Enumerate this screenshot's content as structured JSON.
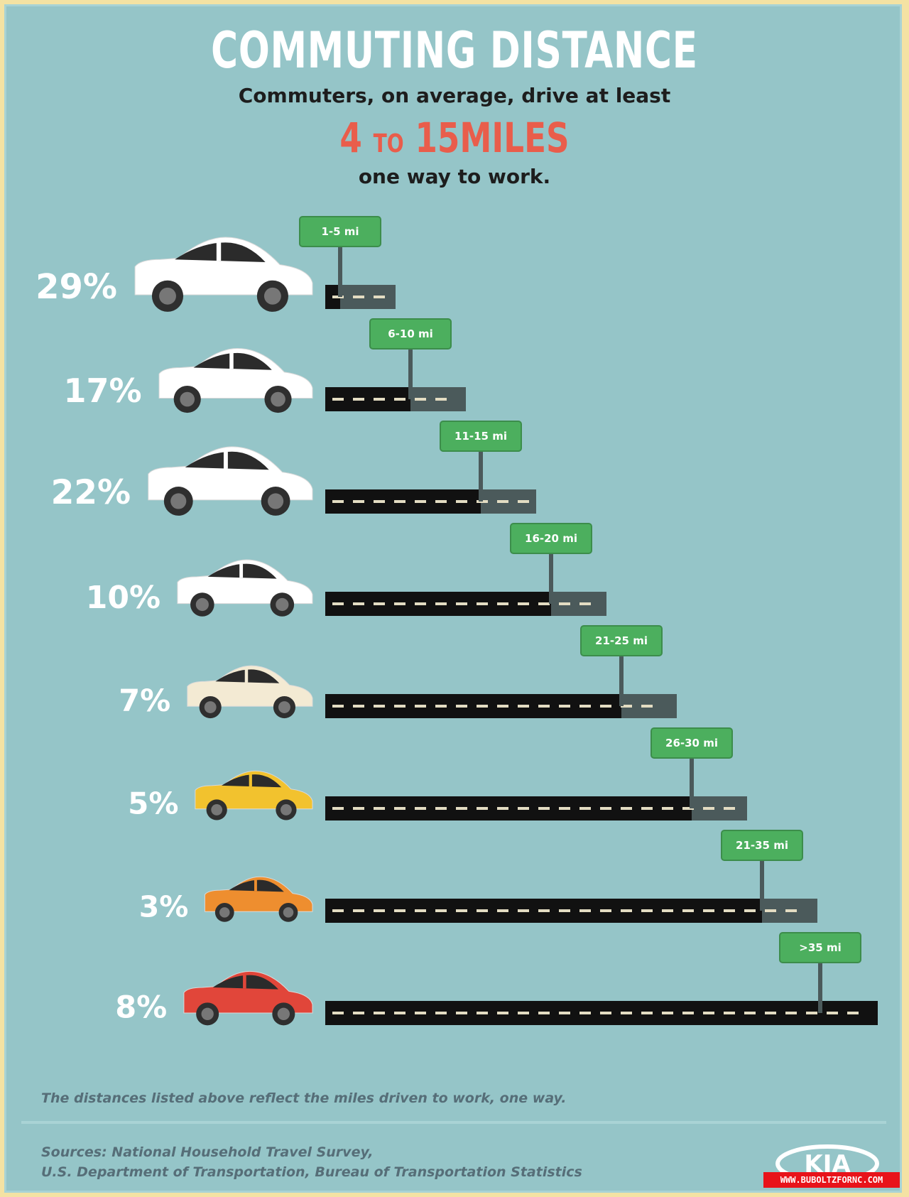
{
  "header": {
    "title": "COMMUTING DISTANCE",
    "subtitle_line1": "Commuters, on average, drive at least",
    "highlight_from": "4",
    "highlight_to_word": "TO",
    "highlight_to": "15MILES",
    "subtitle_line2": "one way to work."
  },
  "chart_data": {
    "type": "bar",
    "title": "COMMUTING DISTANCE",
    "categories": [
      "1-5 mi",
      "6-10 mi",
      "11-15 mi",
      "16-20 mi",
      "21-25 mi",
      "26-30 mi",
      "21-35 mi",
      ">35 mi"
    ],
    "values": [
      29,
      17,
      22,
      10,
      7,
      5,
      3,
      8
    ],
    "value_labels": [
      "29%",
      "17%",
      "22%",
      "10%",
      "7%",
      "5%",
      "3%",
      "8%"
    ],
    "unit": "%",
    "car_colors": [
      "#ffffff",
      "#ffffff",
      "#ffffff",
      "#ffffff",
      "#f3ead3",
      "#f2c22e",
      "#ee8e2f",
      "#e1463a"
    ],
    "colors": {
      "road": "#111111",
      "road_end": "#4b5a5b",
      "dash": "#e3dcc2",
      "sign": "#4caf5e",
      "sign_border": "#3c8d4b",
      "post": "#4b5a5b"
    }
  },
  "footer": {
    "note": "The distances listed above reflect the miles driven to work, one way.",
    "sources_line1": "Sources: National Household Travel Survey,",
    "sources_line2": "U.S. Department of Transportation, Bureau of Transportation Statistics",
    "logo_text": "KIA",
    "watermark": "WWW.BUBOLTZFORNC.COM"
  }
}
